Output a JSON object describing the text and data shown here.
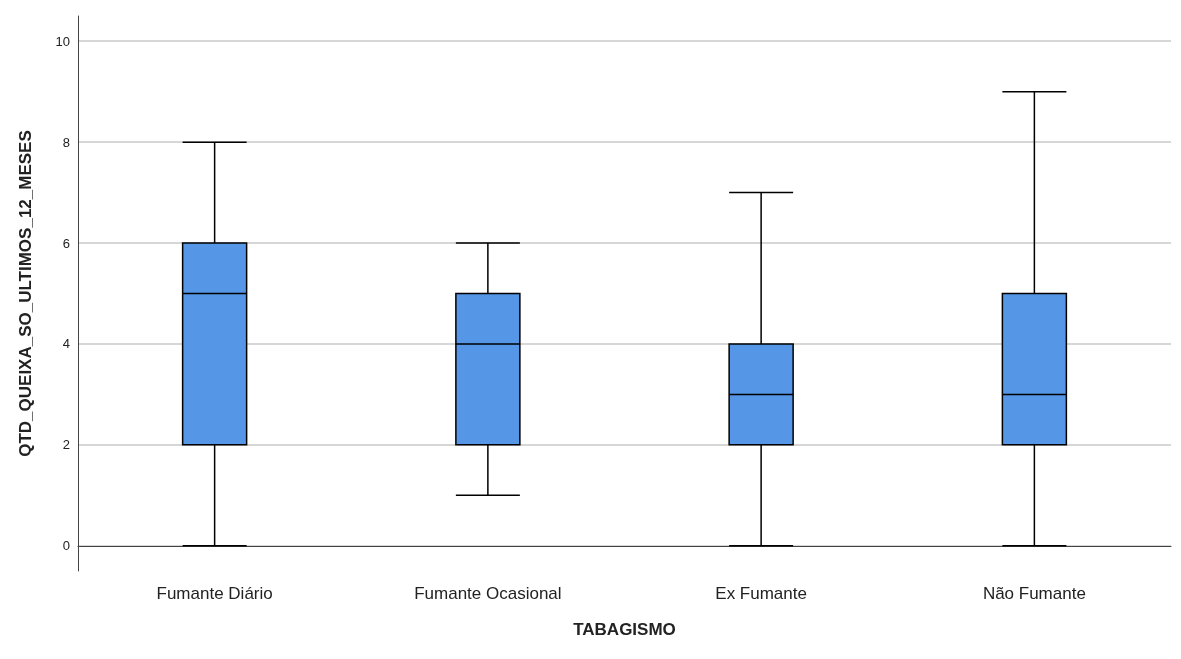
{
  "chart_data": {
    "type": "box",
    "xlabel": "TABAGISMO",
    "ylabel": "QTD_QUEIXA_SO_ULTIMOS_12_MESES",
    "categories": [
      "Fumante Diário",
      "Fumante Ocasional",
      "Ex Fumante",
      "Não Fumante"
    ],
    "color": "#5596e6",
    "boxes": [
      {
        "low": 0,
        "q1": 2,
        "median": 5,
        "q3": 6,
        "high": 8
      },
      {
        "low": 1,
        "q1": 2,
        "median": 4,
        "q3": 5,
        "high": 6
      },
      {
        "low": 0,
        "q1": 2,
        "median": 3,
        "q3": 4,
        "high": 7
      },
      {
        "low": 0,
        "q1": 2,
        "median": 3,
        "q3": 5,
        "high": 9
      }
    ],
    "ylim": [
      -0.5,
      10.5
    ],
    "yticks": [
      0,
      2,
      4,
      6,
      8,
      10
    ],
    "grid": "y"
  }
}
